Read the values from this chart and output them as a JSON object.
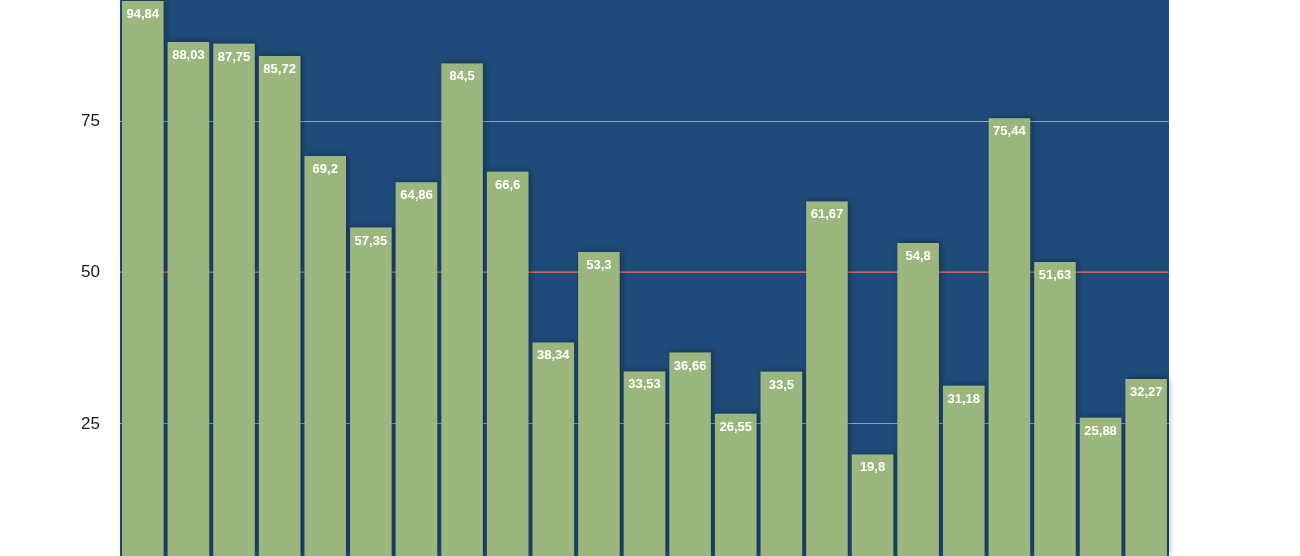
{
  "chart_data": {
    "type": "bar",
    "categories": [
      null,
      null,
      null,
      null,
      null,
      null,
      null,
      null,
      null,
      null,
      null,
      null,
      null,
      null,
      null,
      null,
      null,
      null,
      null,
      null,
      null,
      null,
      null
    ],
    "values": [
      94.84,
      88.03,
      87.75,
      85.72,
      69.2,
      57.35,
      64.86,
      84.5,
      66.6,
      38.34,
      53.3,
      33.53,
      36.66,
      26.55,
      33.5,
      61.67,
      19.8,
      54.8,
      31.18,
      75.44,
      51.63,
      25.88,
      32.27
    ],
    "value_labels": [
      "94,84",
      "88,03",
      "87,75",
      "85,72",
      "69,2",
      "57,35",
      "64,86",
      "84,5",
      "66,6",
      "38,34",
      "53,3",
      "33,53",
      "36,66",
      "26,55",
      "33,5",
      "61,67",
      "19,8",
      "54,8",
      "31,18",
      "75,44",
      "51,63",
      "25,88",
      "32,27"
    ],
    "color": "#9bb77d",
    "ylim": [
      3,
      95
    ],
    "yticks": [
      25,
      50,
      75
    ],
    "grid": "y",
    "tick_labels": "y",
    "ref_lines": [
      {
        "axis": "y",
        "value": 50,
        "color": "#d9533c"
      }
    ]
  }
}
